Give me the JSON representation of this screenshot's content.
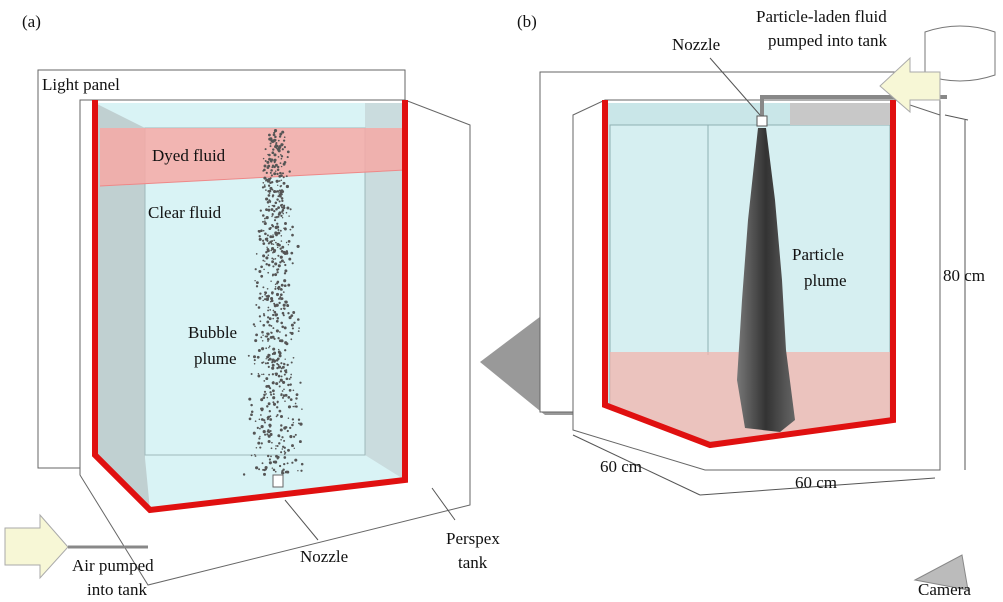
{
  "panel_a": {
    "label": "(a)",
    "light_panel": "Light panel",
    "dyed_fluid": "Dyed fluid",
    "clear_fluid": "Clear fluid",
    "bubble_plume": [
      "Bubble",
      "plume"
    ],
    "air_inlet": [
      "Air pumped",
      "into tank"
    ],
    "nozzle": "Nozzle",
    "tank": [
      "Perspex",
      "tank"
    ]
  },
  "panel_b": {
    "label": "(b)",
    "nozzle": "Nozzle",
    "particle_inlet": [
      "Particle-laden fluid",
      "pumped into tank"
    ],
    "particle_plume": [
      "Particle",
      "plume"
    ],
    "height": "80 cm",
    "depth": "60 cm",
    "width": "60 cm",
    "camera": "Camera"
  }
}
